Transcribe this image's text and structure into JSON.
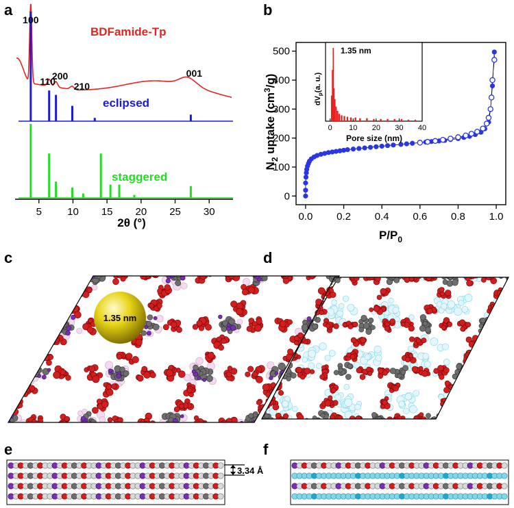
{
  "panels": {
    "a": "a",
    "b": "b",
    "c": "c",
    "d": "d",
    "e": "e",
    "f": "f"
  },
  "colors": {
    "red": "#e8231f",
    "blue": "#1a1adb",
    "green": "#22dd22",
    "atom_red": "#d11f1f",
    "atom_gray": "#6e6e6e",
    "atom_purple": "#7a2fb0",
    "atom_cyan": "#7fd7ec",
    "sphere": "#e6d20a",
    "dot_blue": "#2a35e6"
  },
  "chart_data": [
    {
      "id": "a",
      "type": "line",
      "title": "",
      "xlabel": "2θ (°)",
      "ylabel": "",
      "xlim": [
        1.5,
        33.5
      ],
      "xticks": [
        "5",
        "10",
        "15",
        "20",
        "25",
        "30"
      ],
      "series": [
        {
          "name": "BDFamide-Tp",
          "color": "#e8231f",
          "peaks": [
            [
              3.8,
              100
            ],
            [
              6.5,
              14
            ],
            [
              7.5,
              10
            ],
            [
              9.9,
              6
            ],
            [
              26.5,
              20
            ]
          ],
          "peak_labels": [
            "100",
            "110",
            "200",
            "210",
            "001"
          ]
        },
        {
          "name": "eclipsed",
          "color": "#1a1adb",
          "sticks": [
            [
              3.8,
              1.0
            ],
            [
              6.5,
              0.28
            ],
            [
              7.5,
              0.24
            ],
            [
              9.9,
              0.14
            ],
            [
              13.2,
              0.03
            ],
            [
              27.3,
              0.06
            ]
          ]
        },
        {
          "name": "staggered",
          "color": "#22dd22",
          "sticks": [
            [
              3.8,
              1.0
            ],
            [
              6.5,
              0.6
            ],
            [
              7.5,
              0.22
            ],
            [
              9.9,
              0.14
            ],
            [
              11.5,
              0.06
            ],
            [
              14.1,
              0.6
            ],
            [
              15.5,
              0.18
            ],
            [
              16.8,
              0.18
            ],
            [
              19.0,
              0.04
            ],
            [
              27.3,
              0.16
            ]
          ]
        }
      ]
    },
    {
      "id": "b",
      "type": "scatter",
      "xlabel": "P/P",
      "xlabel_sub": "0",
      "ylabel_pre": "N",
      "ylabel_sub": "2",
      "ylabel_mid": " uptake (cm",
      "ylabel_sup": "3",
      "ylabel_post": "/g)",
      "xlim": [
        -0.05,
        1.05
      ],
      "ylim": [
        -30,
        530
      ],
      "xticks": [
        "0.0",
        "0.2",
        "0.4",
        "0.6",
        "0.8",
        "1.0"
      ],
      "yticks": [
        "0",
        "100",
        "200",
        "300",
        "400",
        "500"
      ],
      "series": [
        {
          "name": "adsorption",
          "marker": "filled",
          "x": [
            0.0,
            0.0,
            0.0,
            0.002,
            0.004,
            0.006,
            0.01,
            0.015,
            0.02,
            0.03,
            0.045,
            0.06,
            0.08,
            0.1,
            0.12,
            0.14,
            0.16,
            0.18,
            0.2,
            0.22,
            0.25,
            0.28,
            0.31,
            0.34,
            0.37,
            0.4,
            0.43,
            0.46,
            0.5,
            0.53,
            0.56,
            0.6,
            0.63,
            0.66,
            0.7,
            0.73,
            0.76,
            0.8,
            0.83,
            0.86,
            0.89,
            0.92,
            0.94,
            0.96,
            0.97,
            0.98,
            0.99
          ],
          "y": [
            0,
            20,
            45,
            65,
            80,
            92,
            103,
            112,
            120,
            128,
            135,
            140,
            144,
            147,
            150,
            152,
            154,
            156,
            158,
            160,
            162,
            164,
            166,
            168,
            170,
            172,
            174,
            176,
            178,
            180,
            182,
            184,
            186,
            188,
            190,
            192,
            195,
            198,
            202,
            206,
            212,
            220,
            232,
            255,
            300,
            380,
            497
          ]
        },
        {
          "name": "desorption",
          "marker": "open",
          "x": [
            0.99,
            0.98,
            0.975,
            0.97,
            0.96,
            0.95,
            0.93,
            0.9,
            0.87,
            0.84,
            0.8,
            0.76,
            0.72,
            0.68,
            0.64,
            0.6
          ],
          "y": [
            470,
            400,
            340,
            300,
            270,
            250,
            233,
            222,
            215,
            209,
            203,
            198,
            194,
            190,
            187,
            184
          ]
        }
      ],
      "inset": {
        "type": "bar",
        "xlabel": "Pore size (nm)",
        "ylabel_pre": "dV",
        "ylabel_sub": "p",
        "ylabel_post": "(a. u.)",
        "annotation": "1.35 nm",
        "xlim": [
          -2,
          40
        ],
        "xticks": [
          "0",
          "10",
          "20",
          "30",
          "40"
        ],
        "x": [
          0.6,
          1.0,
          1.35,
          1.7,
          2.1,
          2.6,
          3.2,
          4.0,
          5.0,
          6.2,
          7.5,
          9.0,
          11,
          13,
          16,
          19,
          22,
          25,
          28,
          31,
          34,
          37
        ],
        "values": [
          0.35,
          0.7,
          1.0,
          0.45,
          0.3,
          0.2,
          0.14,
          0.1,
          0.08,
          0.07,
          0.06,
          0.05,
          0.05,
          0.04,
          0.04,
          0.03,
          0.03,
          0.03,
          0.03,
          0.03,
          0.02,
          0.02
        ]
      }
    }
  ],
  "annotations": {
    "sphere_label": "1.35 nm",
    "interlayer": "3.34 Å"
  }
}
